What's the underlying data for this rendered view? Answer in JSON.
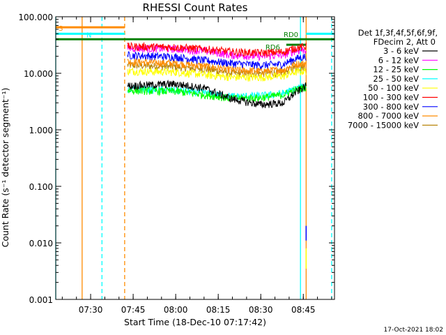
{
  "chart_data": {
    "type": "line",
    "title": "RHESSI Count Rates",
    "xlabel": "Start Time (18-Dec-10 07:17:42)",
    "ylabel": "Count Rate (s⁻¹ detector segment⁻¹)",
    "y_scale": "log",
    "ylim": [
      0.001,
      100
    ],
    "xlim": [
      "07:17:42",
      "08:56:00"
    ],
    "x_ticks": [
      "07:30",
      "07:45",
      "08:00",
      "08:15",
      "08:30",
      "08:45"
    ],
    "y_ticks": [
      "100.000",
      "10.000",
      "1.000",
      "0.100",
      "0.010",
      "0.001"
    ],
    "legend_header": [
      "Det 1f,3f,4f,5f,6f,9f,",
      "FDecim 2, Att 0"
    ],
    "legend_position": "right",
    "series": [
      {
        "name": "3 - 6 keV",
        "color": "#000000",
        "y_at": [
          "07:43",
          "08:00",
          "08:10",
          "08:20",
          "08:30",
          "08:38",
          "08:42",
          "08:46"
        ],
        "values": [
          6.0,
          6.5,
          5.5,
          3.5,
          2.8,
          3.0,
          4.5,
          6.0
        ]
      },
      {
        "name": "6 - 12 keV",
        "color": "#ff00ff",
        "y_at": [
          "07:43",
          "08:00",
          "08:10",
          "08:20",
          "08:30",
          "08:38",
          "08:42",
          "08:46"
        ],
        "values": [
          28,
          27,
          25,
          21,
          20,
          21,
          25,
          26
        ]
      },
      {
        "name": "12 - 25 keV",
        "color": "#00ff00",
        "y_at": [
          "07:43",
          "08:00",
          "08:10",
          "08:20",
          "08:30",
          "08:38",
          "08:42",
          "08:46"
        ],
        "values": [
          5.0,
          4.8,
          4.2,
          3.6,
          3.7,
          4.2,
          5.0,
          5.8
        ]
      },
      {
        "name": "25 - 50 keV",
        "color": "#00ffff",
        "y_at": [
          "07:43",
          "08:00",
          "08:10",
          "08:20",
          "08:30",
          "08:38",
          "08:42",
          "08:46"
        ],
        "values": [
          5.3,
          5.0,
          4.5,
          3.9,
          4.0,
          4.4,
          5.3,
          6.0
        ]
      },
      {
        "name": "50 - 100 keV",
        "color": "#ffff00",
        "y_at": [
          "07:43",
          "08:00",
          "08:10",
          "08:20",
          "08:30",
          "08:38",
          "08:42",
          "08:46"
        ],
        "values": [
          11,
          10.5,
          9.5,
          8.5,
          8.5,
          9.0,
          10.5,
          11
        ]
      },
      {
        "name": "100 - 300 keV",
        "color": "#ff0000",
        "y_at": [
          "07:43",
          "08:00",
          "08:10",
          "08:20",
          "08:30",
          "08:38",
          "08:42",
          "08:46"
        ],
        "values": [
          30,
          29,
          27,
          24,
          23,
          24,
          28,
          30
        ]
      },
      {
        "name": "300 - 800 keV",
        "color": "#0000ff",
        "y_at": [
          "07:43",
          "08:00",
          "08:10",
          "08:20",
          "08:30",
          "08:38",
          "08:42",
          "08:46"
        ],
        "values": [
          21,
          19.5,
          17,
          15,
          14,
          14.5,
          18,
          20
        ]
      },
      {
        "name": "800 - 7000 keV",
        "color": "#ff8c00",
        "y_at": [
          "07:43",
          "08:00",
          "08:10",
          "08:20",
          "08:30",
          "08:38",
          "08:42",
          "08:46"
        ],
        "values": [
          16,
          15,
          13.5,
          11.5,
          11,
          11.5,
          14.5,
          15
        ]
      },
      {
        "name": "7000 - 15000 keV",
        "color": "#b8860b",
        "y_at": [
          "07:43",
          "08:00",
          "08:10",
          "08:20",
          "08:30",
          "08:38",
          "08:42",
          "08:46"
        ],
        "values": [
          14,
          13,
          12,
          10,
          10,
          10.5,
          12.5,
          13
        ]
      }
    ],
    "flags": [
      {
        "label": "S",
        "color": "#ff8c00",
        "x": [
          "07:17:42",
          "07:42:00"
        ],
        "y": 65
      },
      {
        "label": "N",
        "color": "#00ffff",
        "x": [
          "07:17:42",
          "07:42:00"
        ],
        "y": 50
      },
      {
        "label": "RD0",
        "color": "#008000",
        "x": [
          "07:17:42",
          "08:56:00"
        ],
        "y": 40
      },
      {
        "label": "RD6",
        "color": "#008000",
        "x": [
          "08:39:00",
          "08:46:00"
        ],
        "y": 32
      },
      {
        "label": "",
        "color": "#00ffff",
        "x": [
          "08:46:00",
          "08:56:00"
        ],
        "y": 50
      }
    ],
    "vertical_lines": [
      {
        "x": "07:17:42",
        "color": "#00ffff",
        "style": "solid"
      },
      {
        "x": "07:27:00",
        "color": "#ff8c00",
        "style": "solid"
      },
      {
        "x": "07:34:00",
        "color": "#00ffff",
        "style": "dashed"
      },
      {
        "x": "07:42:00",
        "color": "#ff8c00",
        "style": "dashed"
      },
      {
        "x": "08:44:00",
        "color": "#00ffff",
        "style": "solid"
      },
      {
        "x": "08:46:00",
        "color": "#ff8c00",
        "style": "solid"
      },
      {
        "x": "08:55:00",
        "color": "#00ffff",
        "style": "dashed"
      }
    ],
    "dropoff": {
      "x": "08:46:00",
      "segments": [
        {
          "color": "#0000ff",
          "from": 0.02,
          "to": 0.011
        },
        {
          "color": "#ffff00",
          "from": 0.008,
          "to": 0.0035
        }
      ]
    }
  },
  "footer_date": "17-Oct-2021 18:02"
}
